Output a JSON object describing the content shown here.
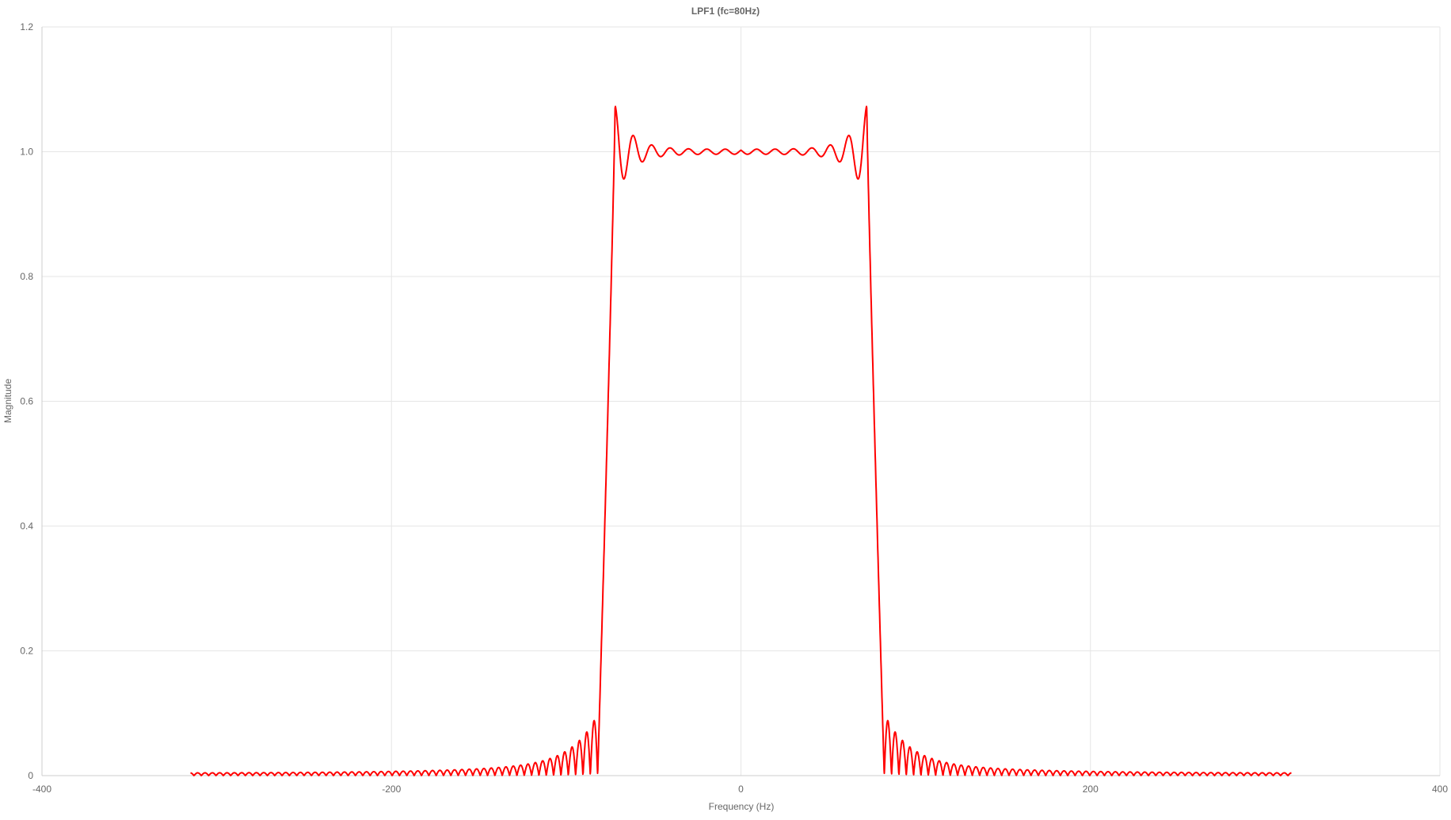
{
  "chart_data": {
    "type": "line",
    "title": "LPF1 (fc=80Hz)",
    "xlabel": "Frequency (Hz)",
    "ylabel": "Magnitude",
    "xlim": [
      -400,
      400
    ],
    "ylim": [
      0,
      1.2
    ],
    "xticks": [
      -400,
      -200,
      0,
      200,
      400
    ],
    "yticks": [
      0,
      0.2,
      0.4,
      0.6,
      0.8,
      1.0,
      1.2
    ],
    "ytick_labels": [
      "0",
      "0.2",
      "0.4",
      "0.6",
      "0.8",
      "1.0",
      "1.2"
    ],
    "grid": true,
    "legend": "none",
    "series": [
      {
        "color": "#ff0000",
        "x_range": [
          -315,
          315
        ],
        "cutoff_hz": 80,
        "x": [
          -315,
          -300,
          -250,
          -200,
          -150,
          -120,
          -100,
          -90,
          -85,
          -83,
          -82,
          -81,
          -80,
          -79,
          -78,
          -77,
          -76,
          -75,
          -72,
          -70,
          -65,
          -60,
          -50,
          -40,
          -20,
          0,
          20,
          40,
          50,
          60,
          65,
          70,
          72,
          75,
          76,
          77,
          78,
          79,
          80,
          81,
          82,
          83,
          85,
          90,
          100,
          120,
          150,
          200,
          250,
          300,
          315
        ],
        "y": [
          0.004,
          0.004,
          0.004,
          0.005,
          0.008,
          0.012,
          0.022,
          0.04,
          0.075,
          0.0,
          0.15,
          0.37,
          0.57,
          0.74,
          0.89,
          0.99,
          1.04,
          1.07,
          0.97,
          0.96,
          1.025,
          0.98,
          1.008,
          0.995,
          1.002,
          1.0,
          1.002,
          0.995,
          1.008,
          0.98,
          1.025,
          0.96,
          0.97,
          1.07,
          1.04,
          0.99,
          0.89,
          0.74,
          0.57,
          0.37,
          0.15,
          0.0,
          0.075,
          0.04,
          0.022,
          0.012,
          0.008,
          0.005,
          0.004,
          0.004,
          0.004
        ]
      }
    ]
  }
}
